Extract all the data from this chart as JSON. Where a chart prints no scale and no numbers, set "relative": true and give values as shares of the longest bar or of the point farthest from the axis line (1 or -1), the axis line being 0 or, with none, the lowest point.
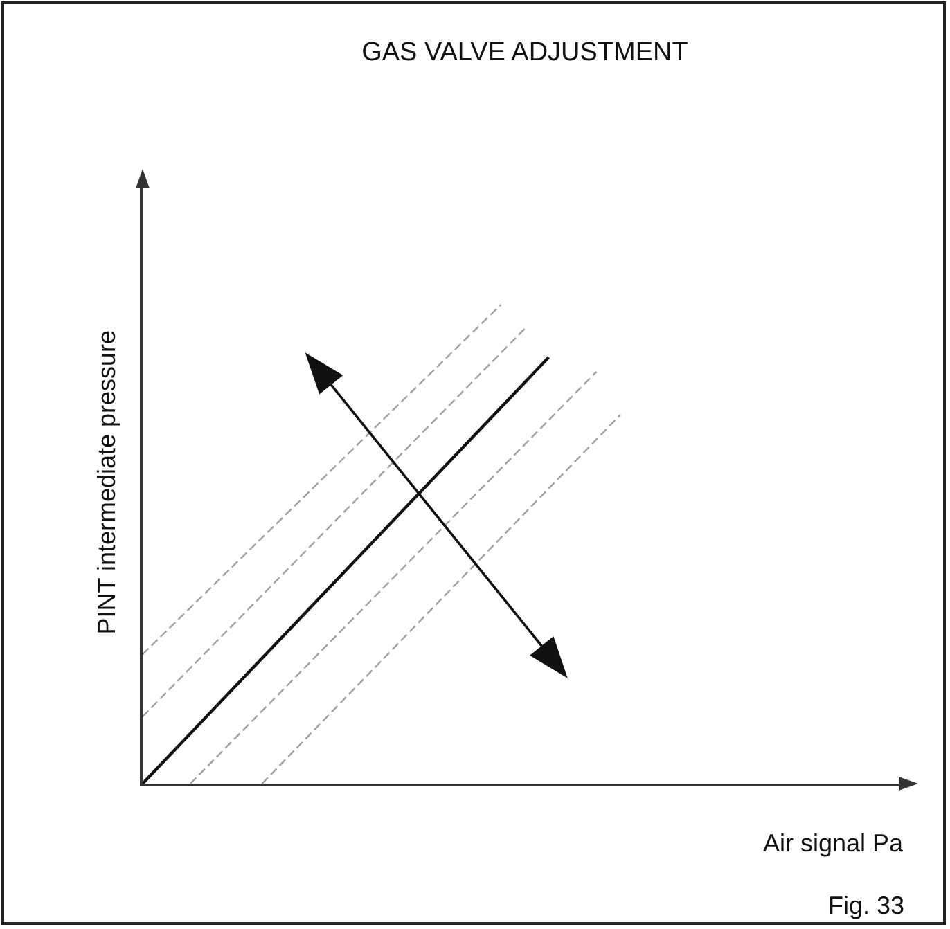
{
  "chart_data": {
    "type": "line",
    "title": "GAS VALVE ADJUSTMENT",
    "xlabel": "Air signal Pa",
    "ylabel": "PINT intermediate pressure",
    "annotations": [
      "Fig. 33"
    ],
    "relative": true,
    "grid": false,
    "marker": "none",
    "categories": [
      null,
      null,
      null,
      null,
      null,
      null,
      null,
      null,
      null,
      null,
      null,
      null,
      null,
      null,
      null,
      null,
      null,
      null,
      null,
      null,
      null,
      null,
      null,
      null,
      null,
      null,
      null,
      null,
      null,
      null,
      null,
      null,
      null
    ],
    "series": [
      {
        "color": "#a0a0a0",
        "line_style": "dashed",
        "values": [
          0.27,
          null,
          null,
          null,
          null,
          null,
          null,
          null,
          null,
          null,
          null,
          null,
          null,
          null,
          null,
          1.0,
          null,
          null,
          null,
          null,
          null,
          null,
          null,
          null,
          null,
          null,
          null,
          null,
          null,
          null,
          null,
          null,
          null
        ]
      },
      {
        "color": "#a0a0a0",
        "line_style": "dashed",
        "values": [
          0.14,
          null,
          null,
          null,
          null,
          null,
          null,
          null,
          null,
          null,
          null,
          null,
          null,
          null,
          null,
          null,
          0.95,
          null,
          null,
          null,
          null,
          null,
          null,
          null,
          null,
          null,
          null,
          null,
          null,
          null,
          null,
          null,
          null
        ]
      },
      {
        "color": "#111111",
        "line_style": "solid",
        "values": [
          0,
          null,
          null,
          null,
          null,
          null,
          null,
          null,
          null,
          null,
          null,
          null,
          null,
          null,
          null,
          null,
          null,
          0.89,
          null,
          null,
          null,
          null,
          null,
          null,
          null,
          null,
          null,
          null,
          null,
          null,
          null,
          null,
          null
        ]
      },
      {
        "color": "#a0a0a0",
        "line_style": "dashed",
        "values": [
          null,
          null,
          0,
          null,
          null,
          null,
          null,
          null,
          null,
          null,
          null,
          null,
          null,
          null,
          null,
          null,
          null,
          null,
          null,
          0.86,
          null,
          null,
          null,
          null,
          null,
          null,
          null,
          null,
          null,
          null,
          null,
          null,
          null
        ]
      },
      {
        "color": "#a0a0a0",
        "line_style": "dashed",
        "values": [
          null,
          null,
          null,
          null,
          null,
          0,
          null,
          null,
          null,
          null,
          null,
          null,
          null,
          null,
          null,
          null,
          null,
          null,
          null,
          null,
          0.77,
          null,
          null,
          null,
          null,
          null,
          null,
          null,
          null,
          null,
          null,
          null,
          null
        ]
      }
    ]
  }
}
